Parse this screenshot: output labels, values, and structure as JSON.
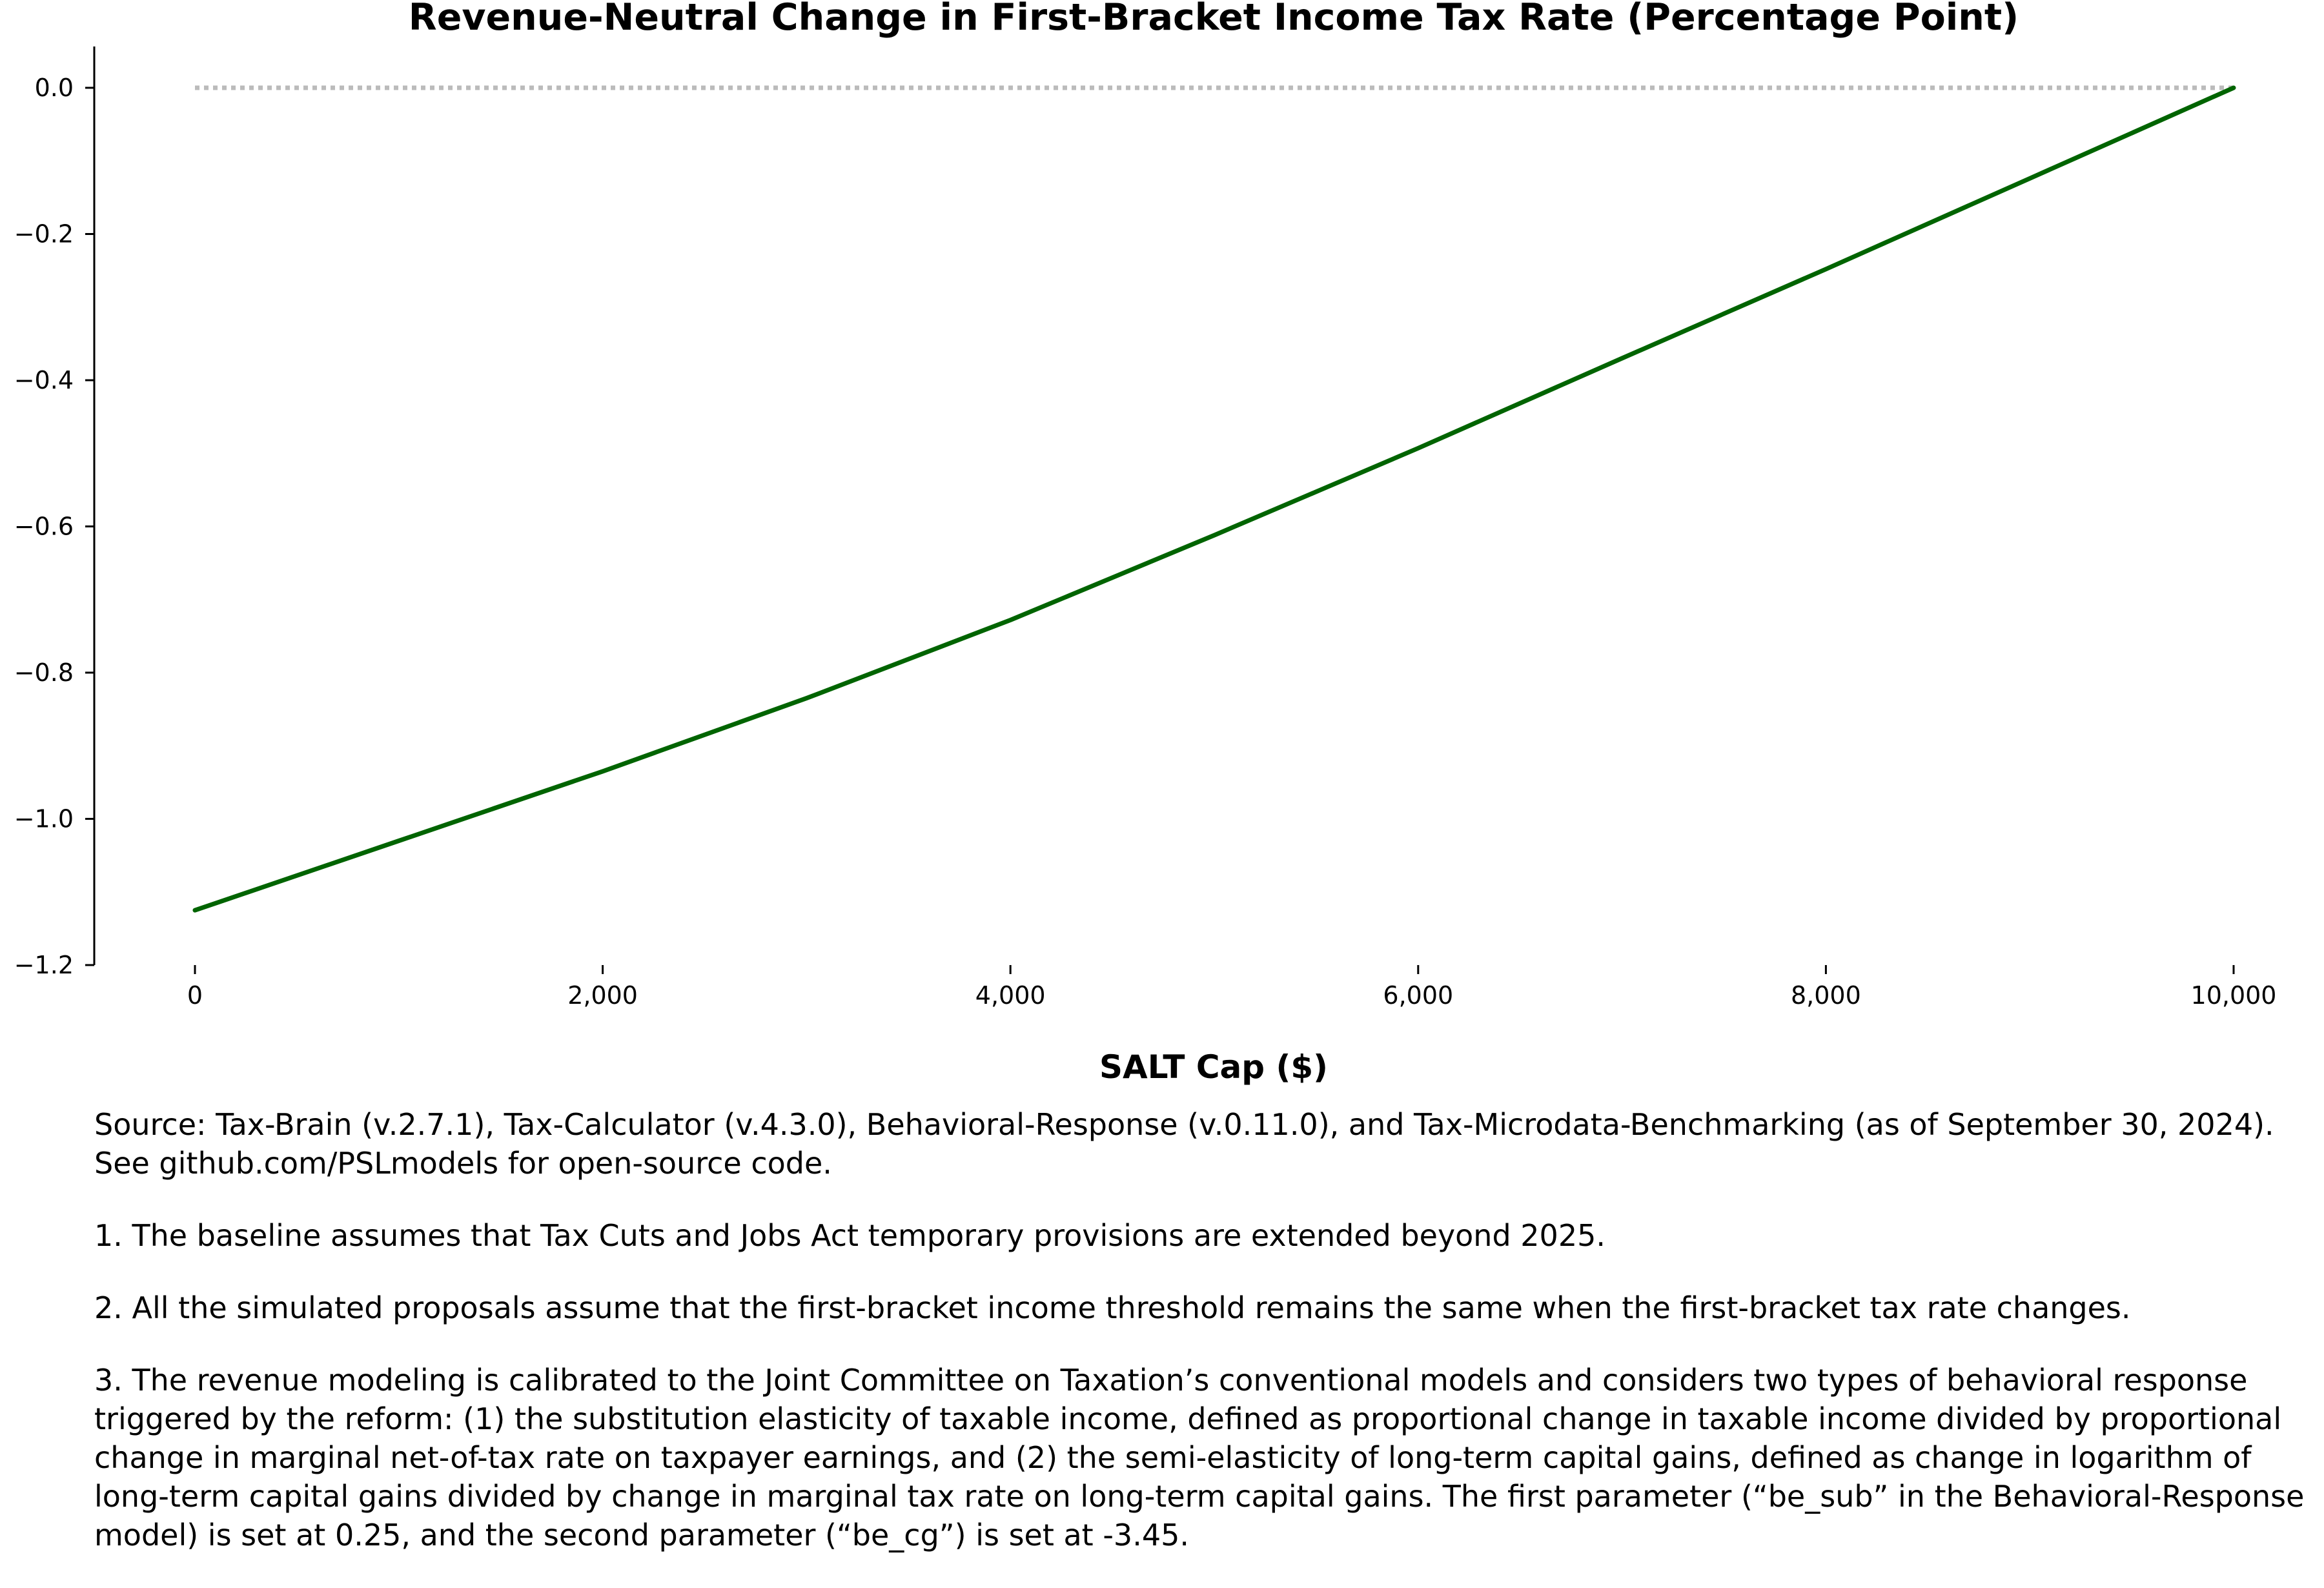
{
  "chart_data": {
    "type": "line",
    "title": "Revenue-Neutral Change in First-Bracket Income Tax Rate (Percentage Point)",
    "xlabel": "SALT Cap ($)",
    "ylabel": "",
    "xlim": [
      0,
      10000
    ],
    "ylim": [
      -1.2,
      0.0
    ],
    "xticks": [
      0,
      2000,
      4000,
      6000,
      8000,
      10000
    ],
    "xtick_labels": [
      "0",
      "2,000",
      "4,000",
      "6,000",
      "8,000",
      "10,000"
    ],
    "yticks": [
      0.0,
      -0.2,
      -0.4,
      -0.6,
      -0.8,
      -1.0,
      -1.2
    ],
    "ytick_labels": [
      "0.0",
      "−0.2",
      "−0.4",
      "−0.6",
      "−0.8",
      "−1.0",
      "−1.2"
    ],
    "grid": false,
    "reference_line": {
      "y": 0.0,
      "style": "dotted",
      "color": "#bbbbbb"
    },
    "series": [
      {
        "color": "#006400",
        "x": [
          0,
          1000,
          2000,
          3000,
          4000,
          5000,
          6000,
          7000,
          8000,
          9000,
          10000
        ],
        "y": [
          -1.125,
          -1.03,
          -0.935,
          -0.835,
          -0.728,
          -0.612,
          -0.493,
          -0.37,
          -0.248,
          -0.124,
          0.0
        ]
      }
    ]
  },
  "notes": {
    "source": "Source: Tax-Brain (v.2.7.1), Tax-Calculator (v.4.3.0), Behavioral-Response (v.0.11.0), and Tax-Microdata-Benchmarking (as of September 30, 2024). See github.com/PSLmodels for open-source code.",
    "note1": "1. The baseline assumes that Tax Cuts and Jobs Act temporary provisions are extended beyond 2025.",
    "note2": "2. All the simulated proposals assume that the first-bracket income threshold remains the same when the first-bracket tax rate changes.",
    "note3": "3. The revenue modeling is calibrated to the Joint Committee on Taxation’s conventional models and considers two types of behavioral response triggered by the reform: (1) the substitution elasticity of taxable income, defined as proportional change in taxable income divided by proportional change in marginal net-of-tax rate on taxpayer earnings, and (2) the semi-elasticity of long-term capital gains, defined as change in logarithm of long-term capital gains divided by change in marginal tax rate on long-term capital gains. The first parameter (“be_sub” in the Behavioral-Response model) is set at 0.25, and the second parameter (“be_cg”) is set at -3.45."
  }
}
